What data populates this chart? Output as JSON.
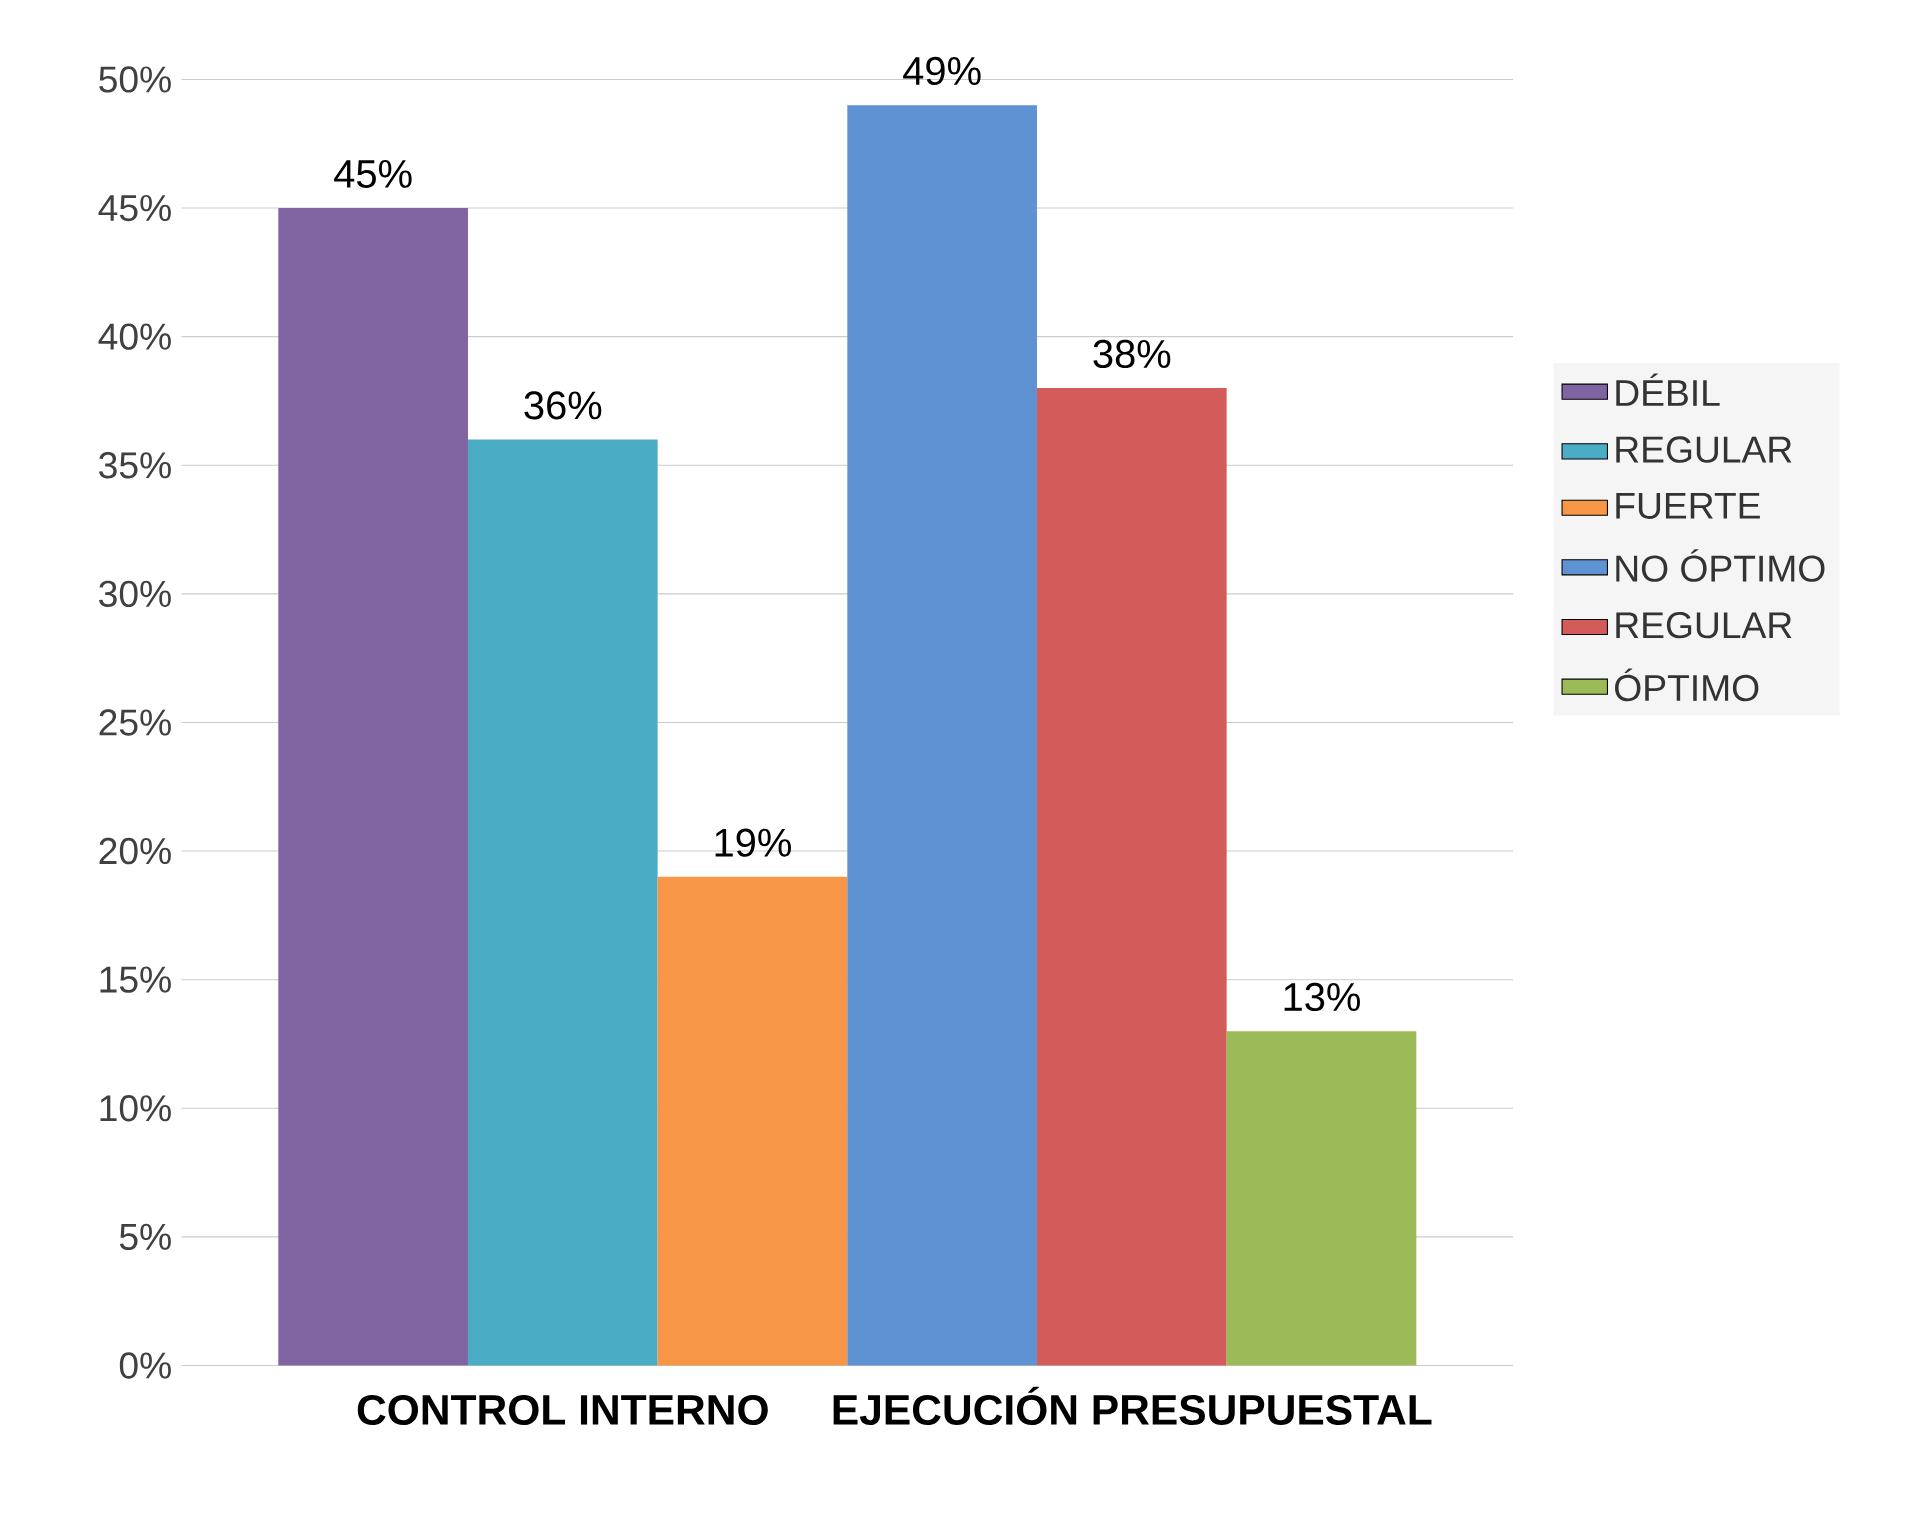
{
  "chart_data": {
    "type": "bar",
    "categories": [
      "CONTROL INTERNO",
      "EJECUCIÓN PRESUPUESTAL"
    ],
    "series": [
      {
        "name": "DÉBIL",
        "color": "#8064a2",
        "values": [
          45,
          null
        ],
        "value_labels": [
          "45%",
          null
        ]
      },
      {
        "name": "REGULAR",
        "color": "#4bacc6",
        "values": [
          36,
          null
        ],
        "value_labels": [
          "36%",
          null
        ]
      },
      {
        "name": "FUERTE",
        "color": "#f79646",
        "values": [
          19,
          null
        ],
        "value_labels": [
          "19%",
          null
        ]
      },
      {
        "name": "NO ÓPTIMO",
        "color": "#5f92d2",
        "values": [
          null,
          49
        ],
        "value_labels": [
          null,
          "49%"
        ]
      },
      {
        "name": "REGULAR",
        "color": "#d35c5a",
        "values": [
          null,
          38
        ],
        "value_labels": [
          null,
          "38%"
        ]
      },
      {
        "name": "ÓPTIMO",
        "color": "#9bbb59",
        "values": [
          null,
          13
        ],
        "value_labels": [
          null,
          "13%"
        ]
      }
    ],
    "ylim": [
      0,
      50
    ],
    "yticks": [
      {
        "value": 0,
        "label": "0%"
      },
      {
        "value": 5,
        "label": "5%"
      },
      {
        "value": 10,
        "label": "10%"
      },
      {
        "value": 15,
        "label": "15%"
      },
      {
        "value": 20,
        "label": "20%"
      },
      {
        "value": 25,
        "label": "25%"
      },
      {
        "value": 30,
        "label": "30%"
      },
      {
        "value": 35,
        "label": "35%"
      },
      {
        "value": 40,
        "label": "40%"
      },
      {
        "value": 45,
        "label": "45%"
      },
      {
        "value": 50,
        "label": "50%"
      }
    ],
    "grid": "y",
    "legend": "right"
  }
}
